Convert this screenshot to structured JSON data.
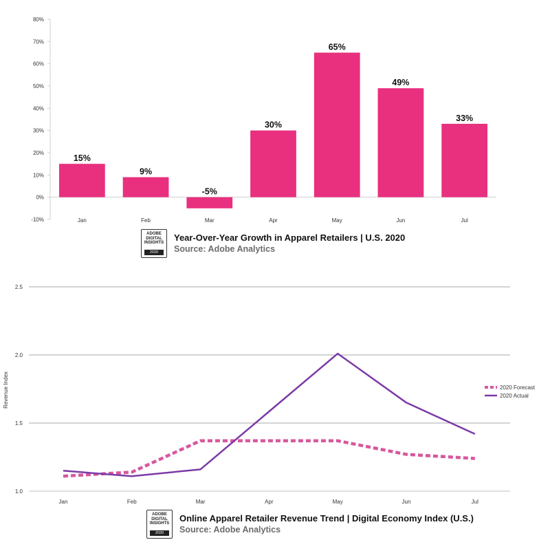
{
  "chart_data": [
    {
      "type": "bar",
      "title": "Year-Over-Year Growth in Apparel Retailers | U.S. 2020",
      "source": "Source: Adobe Analytics",
      "categories": [
        "Jan",
        "Feb",
        "Mar",
        "Apr",
        "May",
        "Jun",
        "Jul"
      ],
      "values": [
        15,
        9,
        -5,
        30,
        65,
        49,
        33
      ],
      "value_labels": [
        "15%",
        "9%",
        "-5%",
        "30%",
        "65%",
        "49%",
        "33%"
      ],
      "yticks": [
        -10,
        0,
        10,
        20,
        30,
        40,
        50,
        60,
        70,
        80
      ],
      "ytick_labels": [
        "-10%",
        "0%",
        "10%",
        "20%",
        "30%",
        "40%",
        "50%",
        "60%",
        "70%",
        "80%"
      ],
      "ylim": [
        -10,
        80
      ],
      "xlabel": "",
      "ylabel": "",
      "bar_color": "#e8307f",
      "badge": {
        "line1": "ADOBE",
        "line2": "DIGITAL",
        "line3": "INSIGHTS",
        "year": "2020"
      }
    },
    {
      "type": "line",
      "title": "Online Apparel Retailer Revenue Trend | Digital Economy Index (U.S.)",
      "source": "Source: Adobe Analytics",
      "categories": [
        "Jan",
        "Feb",
        "Mar",
        "Apr",
        "May",
        "Jun",
        "Jul"
      ],
      "series": [
        {
          "name": "2020 Forecast",
          "values": [
            1.11,
            1.14,
            1.37,
            1.37,
            1.37,
            1.27,
            1.24
          ],
          "color": "#d6589e",
          "style": "dashed"
        },
        {
          "name": "2020 Actual",
          "values": [
            1.15,
            1.11,
            1.16,
            null,
            2.01,
            1.65,
            1.42
          ],
          "color": "#7b3aa6",
          "style": "solid"
        }
      ],
      "yticks": [
        1.0,
        1.5,
        2.0,
        2.5
      ],
      "ytick_labels": [
        "1.0",
        "1.5",
        "2.0",
        "2.5"
      ],
      "ylim": [
        1.0,
        2.5
      ],
      "xlabel": "",
      "ylabel": "Revenue Index",
      "legend": "right",
      "badge": {
        "line1": "ADOBE",
        "line2": "DIGITAL",
        "line3": "INSIGHTS",
        "year": "2020"
      }
    }
  ]
}
